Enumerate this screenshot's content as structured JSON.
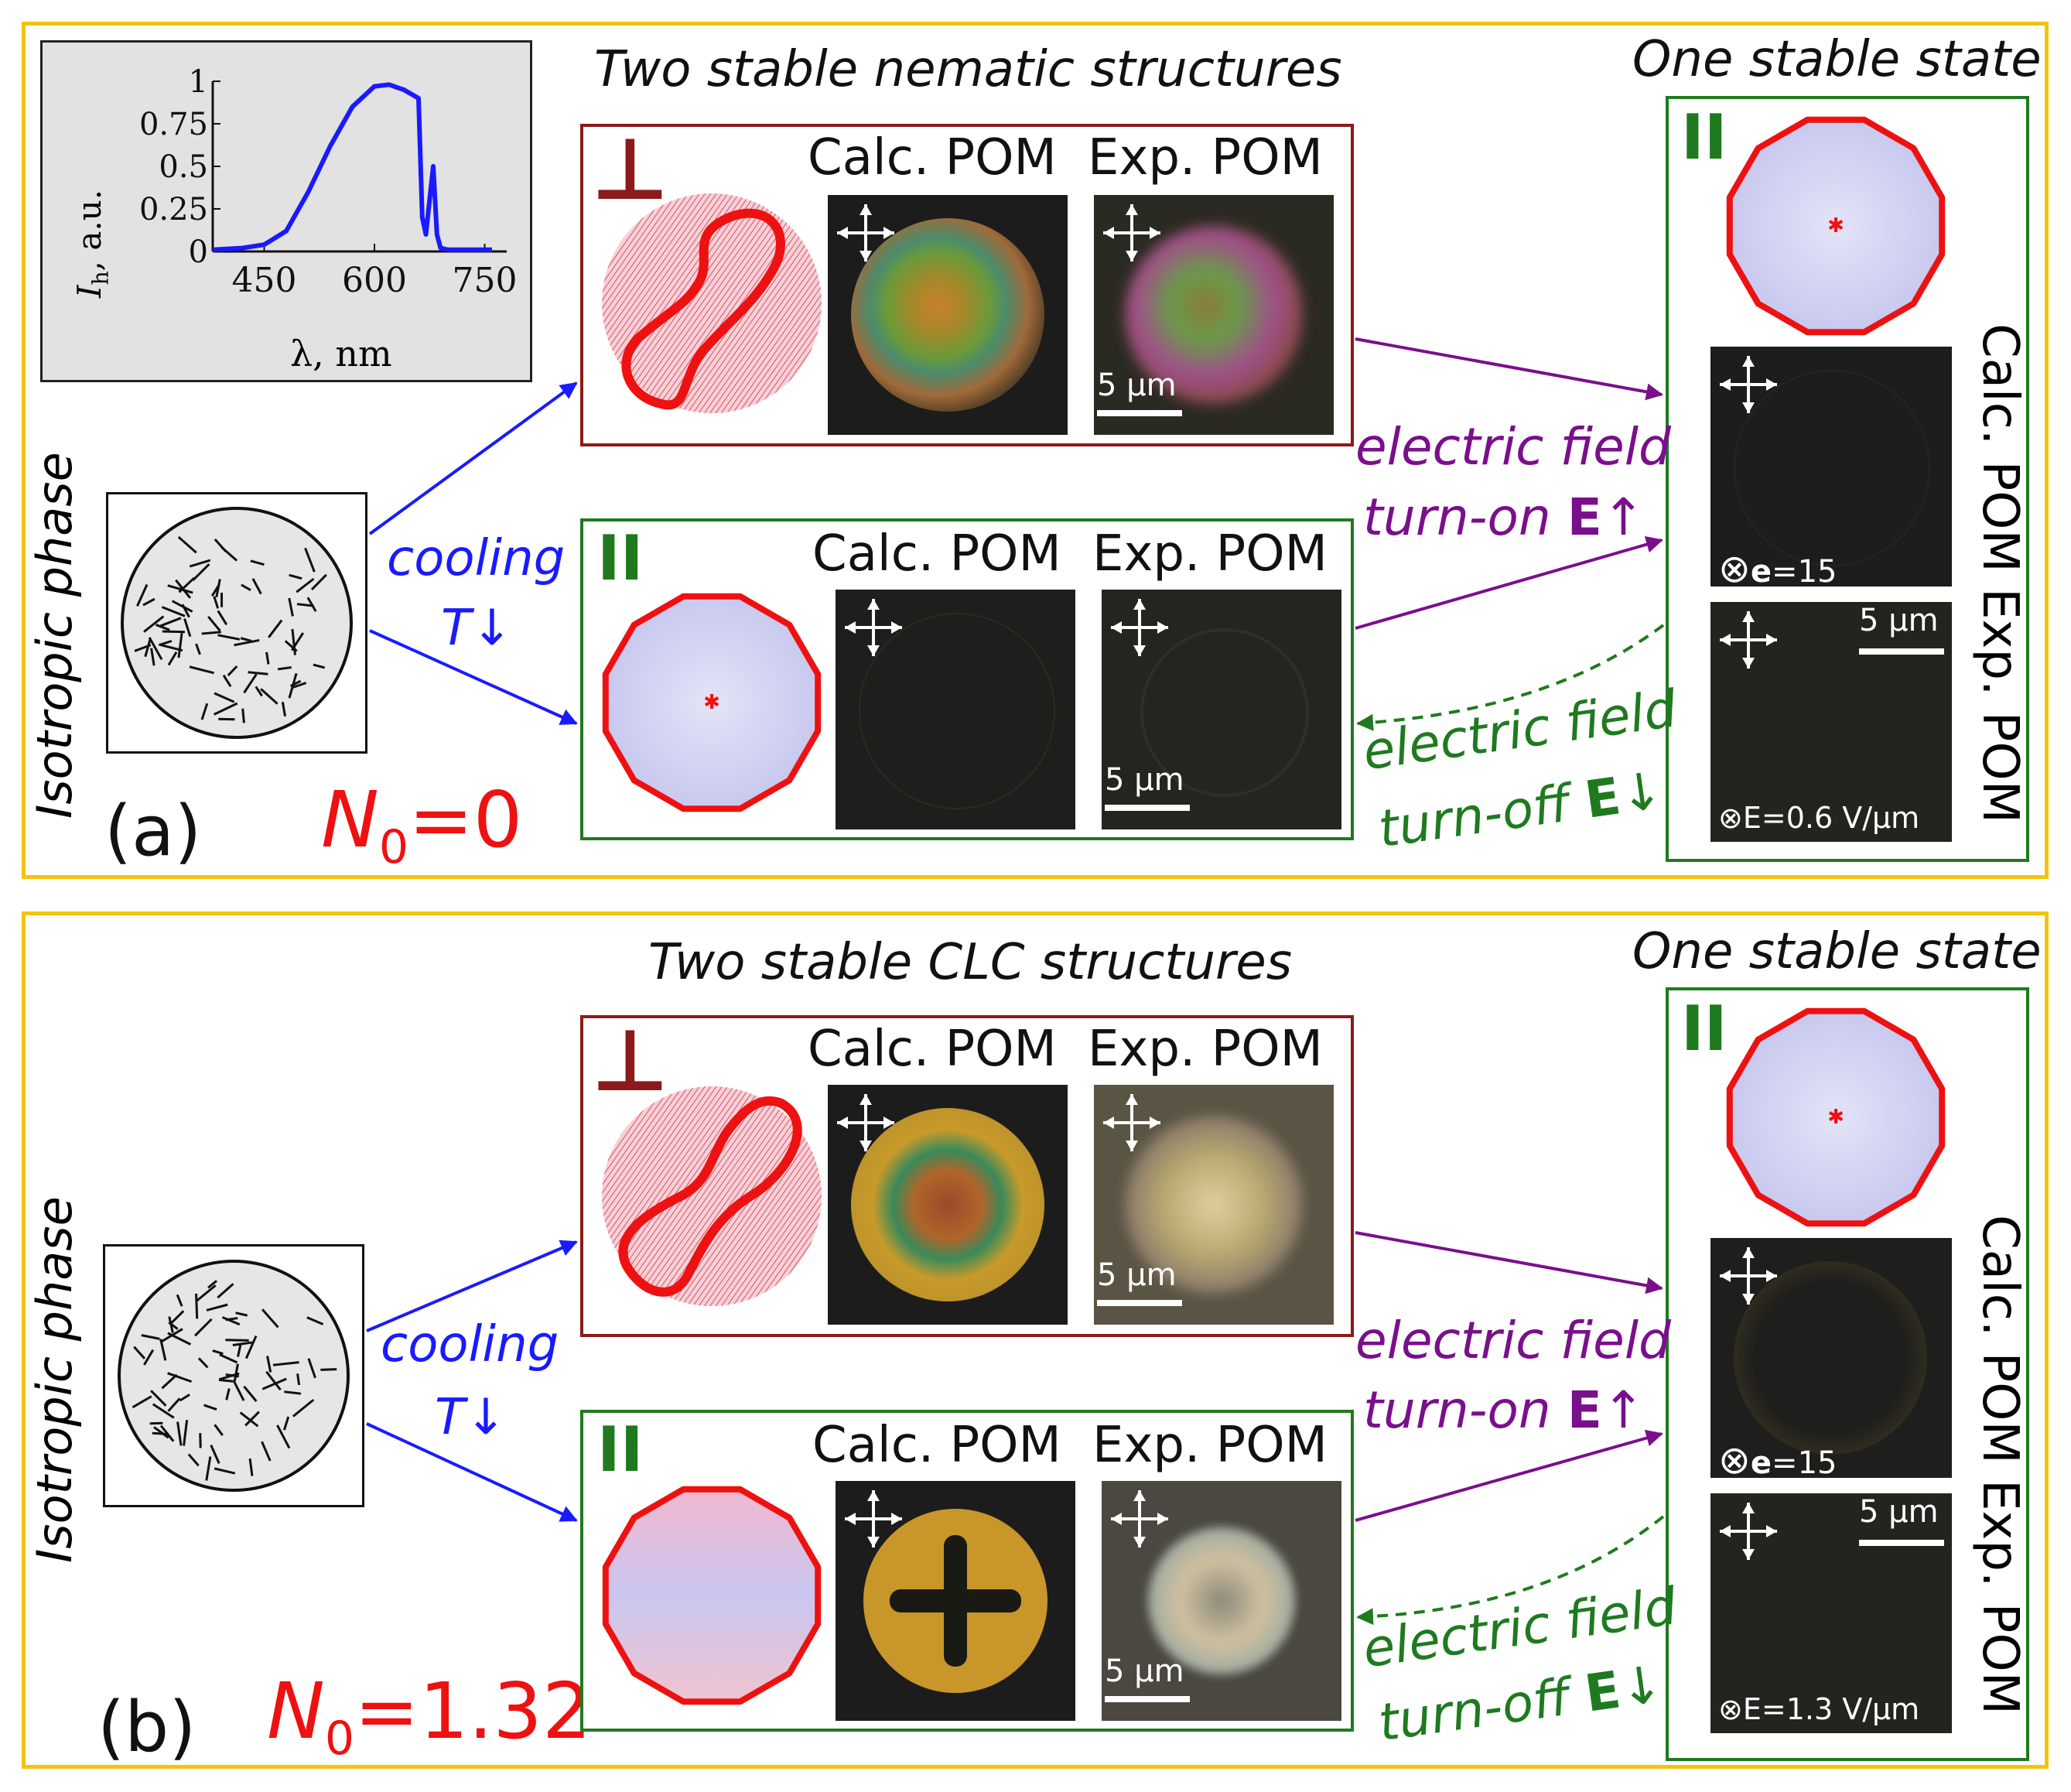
{
  "panel_a": {
    "letter": "(a)",
    "n0_label": "N",
    "n0_sub": "0",
    "n0_value": "=0",
    "title_middle": "Two stable nematic structures",
    "title_right": "One stable state",
    "isotropic_label": "Isotropic phase",
    "cooling": "cooling",
    "t_down": "T↓",
    "perp_symbol": "⊥",
    "parallel_symbol": "II",
    "calc_pom": "Calc. POM",
    "exp_pom": "Exp. POM",
    "scale": "5 µm",
    "ef_on_1": "electric field",
    "ef_on_2": "turn-on ",
    "ef_on_E": "E",
    "ef_on_arrow": "↑",
    "ef_off_1": "electric field",
    "ef_off_2": "turn-off ",
    "ef_off_E": "E",
    "ef_off_arrow": "↓",
    "right_calc_field_prefix": "⊗",
    "right_calc_field_e": "e",
    "right_calc_field_val": "=15",
    "right_exp_field": "⊗E=0.6 V/µm",
    "right_side_label": "Calc. POM Exp. POM"
  },
  "panel_b": {
    "letter": "(b)",
    "n0_label": "N",
    "n0_sub": "0",
    "n0_value": "=1.32",
    "title_middle": "Two stable CLC structures",
    "title_right": "One stable state",
    "isotropic_label": "Isotropic phase",
    "cooling": "cooling",
    "t_down": "T↓",
    "perp_symbol": "⊥",
    "parallel_symbol": "II",
    "calc_pom": "Calc. POM",
    "exp_pom": "Exp. POM",
    "scale": "5 µm",
    "ef_on_1": "electric field",
    "ef_on_2": "turn-on ",
    "ef_on_E": "E",
    "ef_on_arrow": "↑",
    "ef_off_1": "electric field",
    "ef_off_2": "turn-off ",
    "ef_off_E": "E",
    "ef_off_arrow": "↓",
    "right_calc_field_prefix": "⊗",
    "right_calc_field_e": "e",
    "right_calc_field_val": "=15",
    "right_exp_field": "⊗E=1.3 V/µm",
    "right_side_label": "Calc. POM Exp. POM"
  },
  "inset_chart": {
    "ylabel_main": "I",
    "ylabel_sub": "h",
    "ylabel_rest": ", a.u.",
    "xlabel": "λ, nm",
    "xticks": [
      "450",
      "600",
      "750"
    ],
    "yticks": [
      "0",
      "0.25",
      "0.5",
      "0.75",
      "1"
    ]
  },
  "chart_data": {
    "type": "line",
    "xlabel": "λ, nm",
    "ylabel": "Ih, a.u.",
    "xlim": [
      380,
      780
    ],
    "ylim": [
      0,
      1
    ],
    "x": [
      380,
      420,
      450,
      480,
      510,
      540,
      570,
      600,
      620,
      640,
      660,
      665,
      670,
      680,
      685,
      690,
      700,
      720,
      760
    ],
    "series": [
      {
        "values": [
          0.01,
          0.02,
          0.04,
          0.12,
          0.35,
          0.62,
          0.85,
          0.97,
          0.98,
          0.95,
          0.9,
          0.2,
          0.1,
          0.5,
          0.1,
          0.02,
          0.01,
          0.01,
          0.01
        ]
      }
    ],
    "color": "#1a1aff"
  },
  "colors": {
    "panel_border": "#f1c40f",
    "perp_box": "#8b1a1a",
    "parallel_box": "#1f7a1f",
    "cooling_blue": "#1a1aff",
    "turn_on_purple": "#7a0f8c",
    "turn_off_green": "#1f7a1f",
    "n0_red": "#ee1111"
  }
}
